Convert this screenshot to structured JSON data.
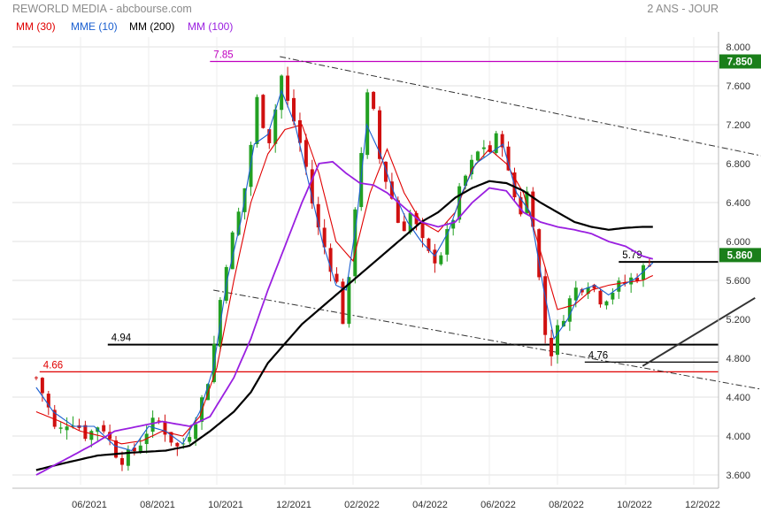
{
  "header": {
    "title": "REWORLD MEDIA - abcbourse.com",
    "period": "2 ANS - JOUR",
    "legend": [
      {
        "label": "MM (30)",
        "color": "#e00000"
      },
      {
        "label": "MME (10)",
        "color": "#1a5fd0"
      },
      {
        "label": "MM (200)",
        "color": "#000000"
      },
      {
        "label": "MM (100)",
        "color": "#9a1fe0"
      }
    ]
  },
  "chart_data": {
    "type": "candlestick",
    "ylim": [
      3.5,
      8.1
    ],
    "y_ticks": [
      "3.600",
      "4.000",
      "4.400",
      "4.800",
      "5.200",
      "5.600",
      "6.000",
      "6.400",
      "6.800",
      "7.200",
      "7.600",
      "8.000"
    ],
    "x_ticks": [
      "06/2021",
      "08/2021",
      "10/2021",
      "12/2021",
      "02/2022",
      "04/2022",
      "06/2022",
      "08/2022",
      "10/2022",
      "12/2022"
    ],
    "last_price": {
      "label": "5.860",
      "value": 5.86,
      "color": "#1a7f1a"
    },
    "high_marker": {
      "label": "7.850",
      "value": 7.85,
      "color": "#1a7f1a"
    },
    "levels": [
      {
        "label": "7.85",
        "value": 7.85,
        "color": "#c000c0",
        "start_month": 3.8
      },
      {
        "label": "5.79",
        "value": 5.79,
        "color": "#000000",
        "start_month": 15.8
      },
      {
        "label": "4.94",
        "value": 4.94,
        "color": "#000000",
        "start_month": 0.8
      },
      {
        "label": "4.76",
        "value": 4.76,
        "color": "#000000",
        "start_month": 14.8
      },
      {
        "label": "4.66",
        "value": 4.66,
        "color": "#e00000",
        "start_month": -1.2
      }
    ],
    "trendlines": [
      {
        "dashed": true,
        "from": [
          5.85,
          7.9
        ],
        "to": [
          20.0,
          6.88
        ]
      },
      {
        "dashed": true,
        "from": [
          3.9,
          5.5
        ],
        "to": [
          20.0,
          4.48
        ]
      },
      {
        "dashed": false,
        "from": [
          16.5,
          4.72
        ],
        "to": [
          19.8,
          5.42
        ]
      }
    ],
    "price_anchors": [
      [
        -1.3,
        4.6
      ],
      [
        -1.0,
        4.35
      ],
      [
        -0.7,
        4.0
      ],
      [
        -0.3,
        4.2
      ],
      [
        0.2,
        4.0
      ],
      [
        0.6,
        4.15
      ],
      [
        1.0,
        3.85
      ],
      [
        1.3,
        3.75
      ],
      [
        1.7,
        3.9
      ],
      [
        2.0,
        4.1
      ],
      [
        2.3,
        4.15
      ],
      [
        2.6,
        4.0
      ],
      [
        2.9,
        3.85
      ],
      [
        3.2,
        4.05
      ],
      [
        3.5,
        4.3
      ],
      [
        3.75,
        4.6
      ],
      [
        4.0,
        5.1
      ],
      [
        4.2,
        5.7
      ],
      [
        4.5,
        6.1
      ],
      [
        4.8,
        6.5
      ],
      [
        5.0,
        7.0
      ],
      [
        5.2,
        7.5
      ],
      [
        5.5,
        7.0
      ],
      [
        5.7,
        7.3
      ],
      [
        5.85,
        7.8
      ],
      [
        6.0,
        7.5
      ],
      [
        6.3,
        7.2
      ],
      [
        6.6,
        6.8
      ],
      [
        6.9,
        6.2
      ],
      [
        7.2,
        5.9
      ],
      [
        7.5,
        5.6
      ],
      [
        7.7,
        5.2
      ],
      [
        7.9,
        5.6
      ],
      [
        8.0,
        6.2
      ],
      [
        8.2,
        6.8
      ],
      [
        8.4,
        7.5
      ],
      [
        8.6,
        7.3
      ],
      [
        8.8,
        6.8
      ],
      [
        9.1,
        6.5
      ],
      [
        9.4,
        6.1
      ],
      [
        9.7,
        6.3
      ],
      [
        10.0,
        6.0
      ],
      [
        10.3,
        5.8
      ],
      [
        10.6,
        5.9
      ],
      [
        10.9,
        6.2
      ],
      [
        11.2,
        6.6
      ],
      [
        11.5,
        6.8
      ],
      [
        11.8,
        7.0
      ],
      [
        12.1,
        6.9
      ],
      [
        12.3,
        7.2
      ],
      [
        12.6,
        6.6
      ],
      [
        12.9,
        6.3
      ],
      [
        13.1,
        6.5
      ],
      [
        13.3,
        6.2
      ],
      [
        13.6,
        5.1
      ],
      [
        13.8,
        4.85
      ],
      [
        14.1,
        5.2
      ],
      [
        14.5,
        5.5
      ],
      [
        14.9,
        5.6
      ],
      [
        15.3,
        5.4
      ],
      [
        15.6,
        5.5
      ],
      [
        15.9,
        5.55
      ],
      [
        16.2,
        5.62
      ],
      [
        16.5,
        5.7
      ],
      [
        16.8,
        5.86
      ]
    ],
    "series": [
      {
        "name": "MM (30)",
        "color": "#e00000",
        "values": [
          [
            -1.3,
            4.25
          ],
          [
            -0.6,
            4.15
          ],
          [
            0.0,
            4.05
          ],
          [
            0.6,
            4.0
          ],
          [
            1.2,
            3.92
          ],
          [
            1.8,
            3.95
          ],
          [
            2.4,
            4.05
          ],
          [
            3.0,
            4.0
          ],
          [
            3.5,
            4.2
          ],
          [
            4.0,
            4.7
          ],
          [
            4.5,
            5.6
          ],
          [
            5.0,
            6.4
          ],
          [
            5.5,
            6.9
          ],
          [
            6.0,
            7.15
          ],
          [
            6.5,
            7.2
          ],
          [
            7.0,
            6.7
          ],
          [
            7.5,
            6.0
          ],
          [
            8.0,
            5.8
          ],
          [
            8.5,
            6.5
          ],
          [
            9.0,
            6.95
          ],
          [
            9.5,
            6.5
          ],
          [
            10.0,
            6.2
          ],
          [
            10.5,
            6.1
          ],
          [
            11.0,
            6.3
          ],
          [
            11.5,
            6.75
          ],
          [
            12.0,
            6.95
          ],
          [
            12.5,
            6.8
          ],
          [
            13.0,
            6.5
          ],
          [
            13.5,
            5.9
          ],
          [
            14.0,
            5.3
          ],
          [
            14.5,
            5.35
          ],
          [
            15.0,
            5.5
          ],
          [
            15.5,
            5.55
          ],
          [
            16.0,
            5.58
          ],
          [
            16.5,
            5.6
          ],
          [
            16.8,
            5.65
          ]
        ]
      },
      {
        "name": "MME (10)",
        "color": "#1a5fd0",
        "values": [
          [
            -1.3,
            4.5
          ],
          [
            -0.8,
            4.25
          ],
          [
            -0.2,
            4.1
          ],
          [
            0.4,
            4.1
          ],
          [
            1.0,
            3.9
          ],
          [
            1.5,
            3.85
          ],
          [
            2.0,
            4.1
          ],
          [
            2.5,
            4.05
          ],
          [
            3.0,
            3.92
          ],
          [
            3.5,
            4.25
          ],
          [
            3.9,
            4.7
          ],
          [
            4.3,
            5.6
          ],
          [
            4.7,
            6.2
          ],
          [
            5.1,
            7.0
          ],
          [
            5.5,
            7.1
          ],
          [
            5.9,
            7.55
          ],
          [
            6.3,
            7.2
          ],
          [
            6.7,
            6.6
          ],
          [
            7.1,
            6.0
          ],
          [
            7.5,
            5.55
          ],
          [
            7.8,
            5.5
          ],
          [
            8.1,
            6.2
          ],
          [
            8.4,
            7.2
          ],
          [
            8.8,
            6.9
          ],
          [
            9.2,
            6.5
          ],
          [
            9.6,
            6.2
          ],
          [
            10.0,
            6.0
          ],
          [
            10.4,
            5.85
          ],
          [
            10.8,
            6.1
          ],
          [
            11.2,
            6.5
          ],
          [
            11.6,
            6.8
          ],
          [
            12.0,
            6.9
          ],
          [
            12.4,
            7.0
          ],
          [
            12.8,
            6.5
          ],
          [
            13.2,
            6.3
          ],
          [
            13.6,
            5.5
          ],
          [
            13.9,
            5.0
          ],
          [
            14.3,
            5.2
          ],
          [
            14.7,
            5.5
          ],
          [
            15.1,
            5.55
          ],
          [
            15.5,
            5.45
          ],
          [
            15.9,
            5.55
          ],
          [
            16.3,
            5.62
          ],
          [
            16.8,
            5.78
          ]
        ]
      },
      {
        "name": "MM (200)",
        "color": "#000000",
        "values": [
          [
            -1.3,
            3.65
          ],
          [
            -0.5,
            3.72
          ],
          [
            0.5,
            3.8
          ],
          [
            1.5,
            3.83
          ],
          [
            2.5,
            3.85
          ],
          [
            3.2,
            3.9
          ],
          [
            3.8,
            4.05
          ],
          [
            4.5,
            4.25
          ],
          [
            5.0,
            4.45
          ],
          [
            5.5,
            4.75
          ],
          [
            6.0,
            4.95
          ],
          [
            6.5,
            5.15
          ],
          [
            7.0,
            5.3
          ],
          [
            7.5,
            5.45
          ],
          [
            8.0,
            5.6
          ],
          [
            8.5,
            5.75
          ],
          [
            9.0,
            5.9
          ],
          [
            9.5,
            6.05
          ],
          [
            10.0,
            6.2
          ],
          [
            10.5,
            6.3
          ],
          [
            11.0,
            6.45
          ],
          [
            11.5,
            6.55
          ],
          [
            12.0,
            6.62
          ],
          [
            12.5,
            6.6
          ],
          [
            13.0,
            6.52
          ],
          [
            13.5,
            6.4
          ],
          [
            14.0,
            6.3
          ],
          [
            14.5,
            6.2
          ],
          [
            15.0,
            6.15
          ],
          [
            15.5,
            6.12
          ],
          [
            16.0,
            6.14
          ],
          [
            16.5,
            6.15
          ],
          [
            16.8,
            6.15
          ]
        ]
      },
      {
        "name": "MM (100)",
        "color": "#9a1fe0",
        "values": [
          [
            -1.3,
            3.6
          ],
          [
            -0.5,
            3.75
          ],
          [
            0.3,
            3.9
          ],
          [
            1.0,
            4.05
          ],
          [
            1.7,
            4.1
          ],
          [
            2.4,
            4.15
          ],
          [
            3.2,
            4.1
          ],
          [
            3.8,
            4.2
          ],
          [
            4.5,
            4.6
          ],
          [
            5.0,
            5.0
          ],
          [
            5.5,
            5.5
          ],
          [
            6.0,
            5.95
          ],
          [
            6.5,
            6.4
          ],
          [
            7.0,
            6.8
          ],
          [
            7.4,
            6.82
          ],
          [
            7.8,
            6.7
          ],
          [
            8.2,
            6.6
          ],
          [
            8.6,
            6.58
          ],
          [
            9.0,
            6.5
          ],
          [
            9.5,
            6.35
          ],
          [
            10.0,
            6.2
          ],
          [
            10.5,
            6.15
          ],
          [
            11.0,
            6.2
          ],
          [
            11.5,
            6.4
          ],
          [
            12.0,
            6.55
          ],
          [
            12.5,
            6.52
          ],
          [
            13.0,
            6.3
          ],
          [
            13.5,
            6.2
          ],
          [
            14.0,
            6.15
          ],
          [
            14.5,
            6.12
          ],
          [
            15.0,
            6.08
          ],
          [
            15.5,
            6.0
          ],
          [
            16.0,
            5.95
          ],
          [
            16.5,
            5.85
          ],
          [
            16.8,
            5.82
          ]
        ]
      }
    ]
  }
}
